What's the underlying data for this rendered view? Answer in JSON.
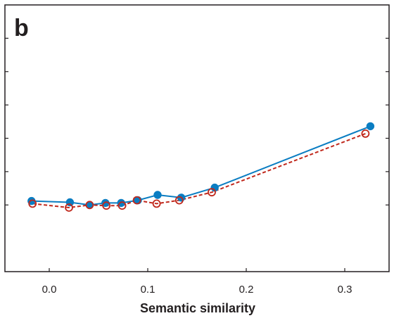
{
  "panel_label": "b",
  "chart_data": {
    "type": "line",
    "title": "",
    "xlabel": "Semantic similarity",
    "ylabel": "",
    "xlim": [
      -0.045,
      0.345
    ],
    "ylim": [
      -1.0,
      3.0
    ],
    "xticks": [
      0.0,
      0.1,
      0.2,
      0.3
    ],
    "xtick_labels": [
      "0.0",
      "0.1",
      "0.2",
      "0.3"
    ],
    "yticks": [
      0.0,
      0.5,
      1.0,
      1.5,
      2.0,
      2.5
    ],
    "ytick_labels": [
      "",
      "",
      "",
      "",
      "",
      ""
    ],
    "grid": false,
    "legend": "none",
    "series": [
      {
        "color": "#0a7dc2",
        "line_style": "solid",
        "marker": "filled-circle",
        "x": [
          -0.018,
          0.021,
          0.041,
          0.057,
          0.073,
          0.09,
          0.11,
          0.134,
          0.168,
          0.326
        ],
        "y": [
          0.06,
          0.04,
          0.0,
          0.03,
          0.03,
          0.07,
          0.15,
          0.11,
          0.26,
          1.18
        ]
      },
      {
        "color": "#c0281c",
        "line_style": "dashed",
        "marker": "open-circle",
        "x": [
          -0.017,
          0.02,
          0.041,
          0.058,
          0.074,
          0.089,
          0.109,
          0.132,
          0.165,
          0.321
        ],
        "y": [
          0.02,
          -0.04,
          0.0,
          -0.01,
          -0.01,
          0.07,
          0.02,
          0.07,
          0.19,
          1.07
        ]
      }
    ]
  }
}
